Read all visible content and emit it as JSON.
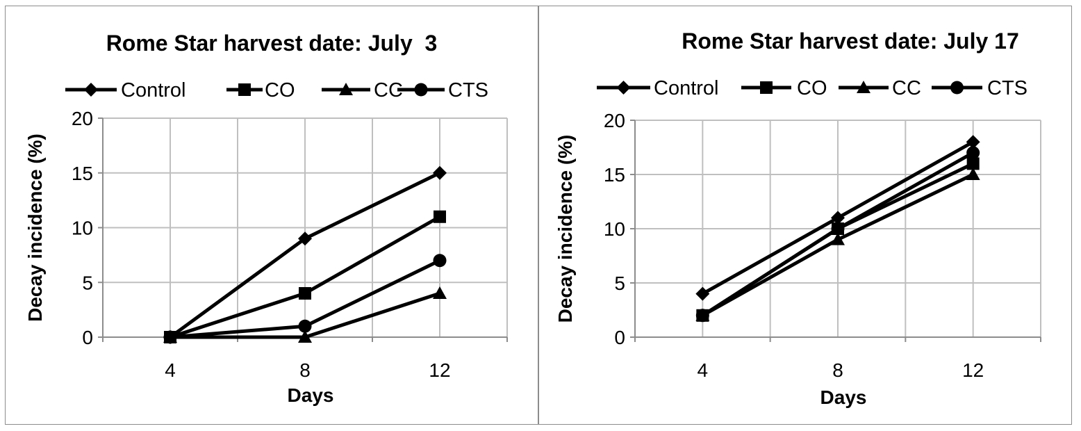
{
  "chart_data": [
    {
      "type": "line",
      "title": "Rome Star harvest date: July  3",
      "xlabel": "Days",
      "ylabel": "Decay incidence (%)",
      "x": [
        4,
        8,
        12
      ],
      "xticks": [
        "4",
        "8",
        "12"
      ],
      "ylim": [
        0,
        20
      ],
      "yticks": [
        "0",
        "5",
        "10",
        "15",
        "20"
      ],
      "grid": true,
      "legend_position": "top",
      "series": [
        {
          "name": "Control",
          "marker": "diamond",
          "values": [
            0,
            9,
            15
          ]
        },
        {
          "name": "CO",
          "marker": "square",
          "values": [
            0,
            4,
            11
          ]
        },
        {
          "name": "CC",
          "marker": "triangle",
          "values": [
            0,
            0,
            4
          ]
        },
        {
          "name": "CTS",
          "marker": "circle",
          "values": [
            0,
            1,
            7
          ]
        }
      ]
    },
    {
      "type": "line",
      "title": "Rome Star harvest date: July 17",
      "xlabel": "Days",
      "ylabel": "Decay incidence (%)",
      "x": [
        4,
        8,
        12
      ],
      "xticks": [
        "4",
        "8",
        "12"
      ],
      "ylim": [
        0,
        20
      ],
      "yticks": [
        "0",
        "5",
        "10",
        "15",
        "20"
      ],
      "grid": true,
      "legend_position": "top",
      "series": [
        {
          "name": "Control",
          "marker": "diamond",
          "values": [
            4,
            11,
            18
          ]
        },
        {
          "name": "CO",
          "marker": "square",
          "values": [
            2,
            10,
            16
          ]
        },
        {
          "name": "CC",
          "marker": "triangle",
          "values": [
            2,
            9,
            15
          ]
        },
        {
          "name": "CTS",
          "marker": "circle",
          "values": [
            2,
            10,
            17
          ]
        }
      ]
    }
  ],
  "colors": {
    "line": "#000000",
    "grid": "#bfbfbf",
    "axis": "#8c8c8c"
  }
}
